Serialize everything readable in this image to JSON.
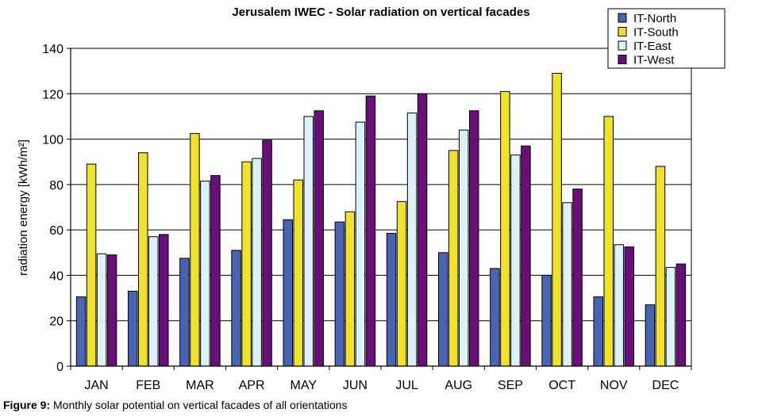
{
  "chart_data": {
    "type": "bar",
    "title": "Jerusalem IWEC - Solar radiation on vertical facades",
    "xlabel": "",
    "ylabel": "radiation energy [kWh/m²]",
    "ylim": [
      0,
      140
    ],
    "yticks": [
      0,
      20,
      40,
      60,
      80,
      100,
      120,
      140
    ],
    "grid": true,
    "legend_position": "top-right",
    "categories": [
      "JAN",
      "FEB",
      "MAR",
      "APR",
      "MAY",
      "JUN",
      "JUL",
      "AUG",
      "SEP",
      "OCT",
      "NOV",
      "DEC"
    ],
    "series": [
      {
        "name": "IT-North",
        "color": "#4964b4",
        "values": [
          30.5,
          33,
          47.5,
          51,
          64.5,
          63.5,
          58.5,
          50,
          43,
          40,
          30.5,
          27
        ]
      },
      {
        "name": "IT-South",
        "color": "#f0e12d",
        "values": [
          89,
          94,
          102.5,
          90,
          82,
          68,
          72.5,
          95,
          121,
          129,
          110,
          88
        ]
      },
      {
        "name": "IT-East",
        "color": "#ddf1fb",
        "values": [
          49.5,
          57,
          81.5,
          91.5,
          110,
          107.5,
          111.5,
          104,
          93,
          72,
          53.5,
          43.5
        ]
      },
      {
        "name": "IT-West",
        "color": "#6a0f7a",
        "values": [
          49,
          58,
          84,
          99.5,
          112.5,
          119,
          120,
          112.5,
          97,
          78,
          52.5,
          45
        ]
      }
    ]
  },
  "caption": {
    "lead": "Figure 9:",
    "text": " Monthly solar potential on vertical facades of all orientations"
  }
}
